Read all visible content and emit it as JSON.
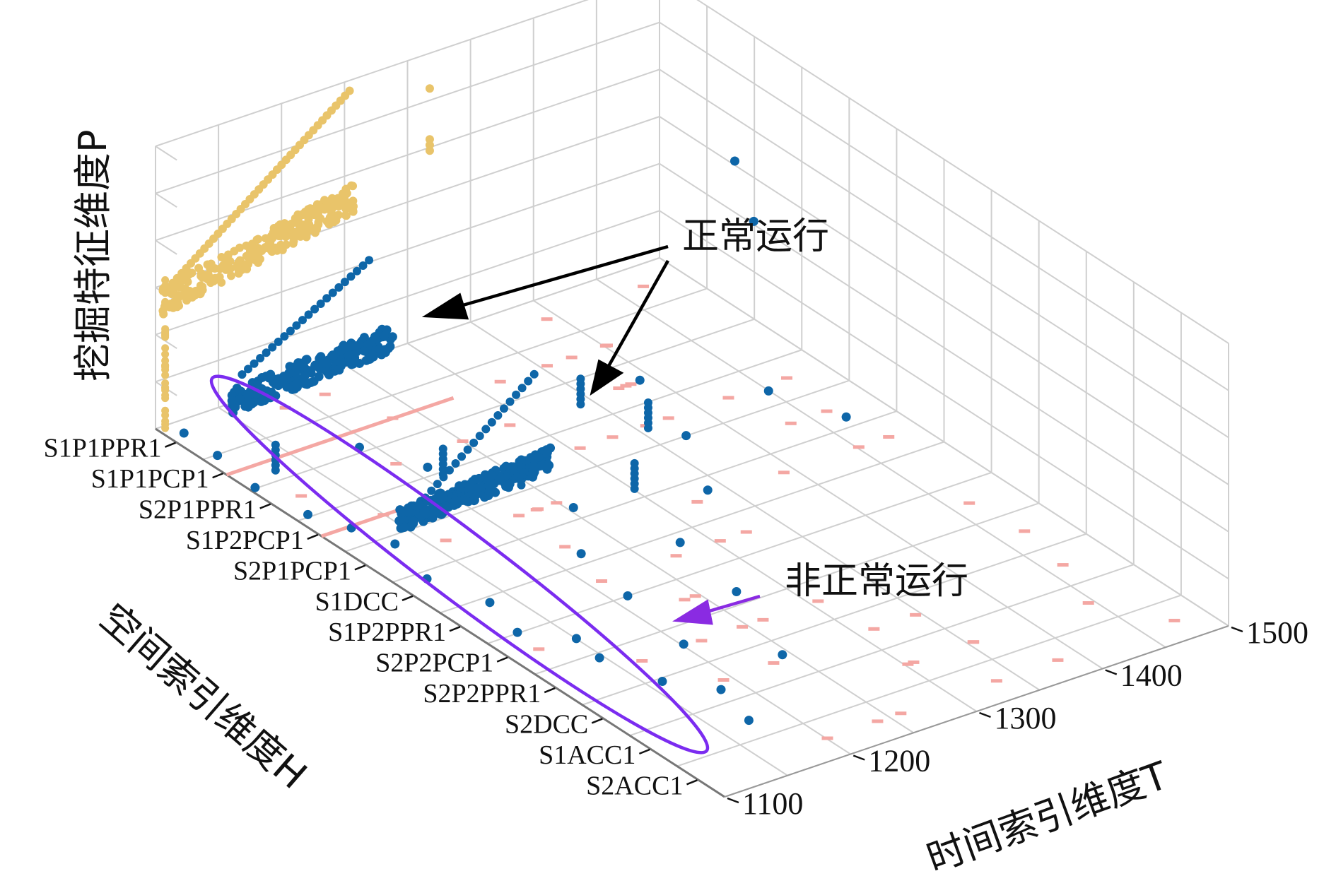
{
  "chart_data": {
    "type": "scatter",
    "title": "",
    "zlabel": "挖掘特征维度P",
    "ylabel": "空间索引维度H",
    "xlabel": "时间索引维度T",
    "time_ticks": [
      "1100",
      "1200",
      "1300",
      "1400",
      "1500"
    ],
    "time_range": [
      1100,
      1500
    ],
    "space_categories": [
      "S1P1PPR1",
      "S1P1PCP1",
      "S2P1PPR1",
      "S1P2PCP1",
      "S2P1PCP1",
      "S1DCC",
      "S1P2PPR1",
      "S2P2PCP1",
      "S2P2PPR1",
      "S2DCC",
      "S1ACC1",
      "S2ACC1"
    ],
    "grid": true,
    "colors": {
      "grid": "#cfcfcf",
      "series_a": "#e9c46a",
      "series_b": "#0e66a8",
      "series_c": "#f4a7a3",
      "ellipse": "#7b2cf0",
      "arrow": "#000000"
    },
    "annotations": {
      "normal": "正常运行",
      "abnormal": "非正常运行"
    }
  }
}
